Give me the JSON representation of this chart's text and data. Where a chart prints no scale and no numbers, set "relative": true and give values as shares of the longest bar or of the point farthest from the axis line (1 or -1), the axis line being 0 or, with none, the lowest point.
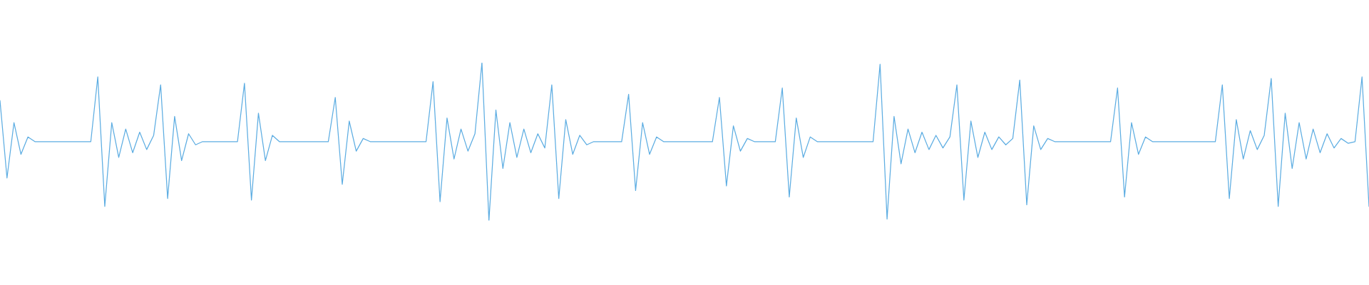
{
  "chart_data": {
    "type": "line",
    "relative": true,
    "marker": "none",
    "line_style": "solid",
    "categories": [
      null,
      null,
      null,
      null,
      null,
      null,
      null,
      null,
      null,
      null,
      null,
      null,
      null,
      null,
      null,
      null,
      null,
      null,
      null,
      null,
      null,
      null,
      null,
      null,
      null,
      null,
      null,
      null,
      null,
      null,
      null,
      null,
      null,
      null,
      null,
      null,
      null,
      null,
      null,
      null,
      null,
      null,
      null,
      null,
      null,
      null,
      null,
      null,
      null,
      null,
      null,
      null,
      null,
      null,
      null,
      null,
      null,
      null,
      null,
      null,
      null,
      null,
      null,
      null,
      null,
      null,
      null,
      null,
      null,
      null,
      null,
      null,
      null,
      null,
      null,
      null,
      null,
      null,
      null,
      null,
      null,
      null,
      null,
      null,
      null,
      null,
      null,
      null,
      null,
      null,
      null,
      null,
      null,
      null,
      null,
      null,
      null,
      null,
      null,
      null,
      null,
      null,
      null,
      null,
      null,
      null,
      null,
      null,
      null,
      null,
      null,
      null,
      null,
      null,
      null,
      null,
      null,
      null,
      null,
      null,
      null,
      null,
      null,
      null,
      null,
      null,
      null,
      null,
      null,
      null,
      null,
      null,
      null,
      null,
      null,
      null,
      null,
      null,
      null,
      null,
      null,
      null,
      null,
      null,
      null,
      null,
      null,
      null,
      null,
      null,
      null,
      null,
      null,
      null,
      null,
      null,
      null,
      null,
      null,
      null,
      null,
      null,
      null,
      null,
      null,
      null,
      null,
      null,
      null,
      null,
      null,
      null,
      null,
      null,
      null,
      null,
      null,
      null,
      null,
      null,
      null,
      null,
      null,
      null,
      null,
      null,
      null,
      null,
      null,
      null,
      null,
      null,
      null,
      null,
      null,
      null,
      null
    ],
    "series": [
      {
        "color": "#5dade2",
        "values": [
          0.76,
          0.27,
          0.62,
          0.42,
          0.53,
          0.5,
          0.5,
          0.5,
          0.5,
          0.5,
          0.5,
          0.5,
          0.5,
          0.5,
          0.91,
          0.09,
          0.62,
          0.4,
          0.58,
          0.43,
          0.56,
          0.45,
          0.54,
          0.86,
          0.14,
          0.66,
          0.38,
          0.55,
          0.48,
          0.5,
          0.5,
          0.5,
          0.5,
          0.5,
          0.5,
          0.87,
          0.13,
          0.68,
          0.38,
          0.54,
          0.5,
          0.5,
          0.5,
          0.5,
          0.5,
          0.5,
          0.5,
          0.5,
          0.78,
          0.23,
          0.63,
          0.44,
          0.52,
          0.5,
          0.5,
          0.5,
          0.5,
          0.5,
          0.5,
          0.5,
          0.5,
          0.5,
          0.88,
          0.12,
          0.65,
          0.39,
          0.58,
          0.44,
          0.55,
          1.0,
          0.0,
          0.7,
          0.33,
          0.62,
          0.4,
          0.58,
          0.43,
          0.55,
          0.46,
          0.86,
          0.14,
          0.64,
          0.42,
          0.54,
          0.48,
          0.5,
          0.5,
          0.5,
          0.5,
          0.5,
          0.8,
          0.19,
          0.62,
          0.42,
          0.53,
          0.5,
          0.5,
          0.5,
          0.5,
          0.5,
          0.5,
          0.5,
          0.5,
          0.78,
          0.22,
          0.6,
          0.44,
          0.52,
          0.5,
          0.5,
          0.5,
          0.5,
          0.84,
          0.15,
          0.65,
          0.4,
          0.53,
          0.5,
          0.5,
          0.5,
          0.5,
          0.5,
          0.5,
          0.5,
          0.5,
          0.5,
          0.99,
          0.01,
          0.66,
          0.36,
          0.58,
          0.43,
          0.56,
          0.45,
          0.54,
          0.46,
          0.53,
          0.86,
          0.13,
          0.63,
          0.4,
          0.56,
          0.45,
          0.53,
          0.48,
          0.52,
          0.89,
          0.1,
          0.6,
          0.45,
          0.52,
          0.5,
          0.5,
          0.5,
          0.5,
          0.5,
          0.5,
          0.5,
          0.5,
          0.5,
          0.84,
          0.15,
          0.62,
          0.42,
          0.53,
          0.5,
          0.5,
          0.5,
          0.5,
          0.5,
          0.5,
          0.5,
          0.5,
          0.5,
          0.5,
          0.86,
          0.14,
          0.64,
          0.39,
          0.57,
          0.45,
          0.54,
          0.9,
          0.09,
          0.68,
          0.33,
          0.62,
          0.39,
          0.58,
          0.43,
          0.55,
          0.46,
          0.52,
          0.49,
          0.5,
          0.91,
          0.09
        ]
      }
    ]
  }
}
